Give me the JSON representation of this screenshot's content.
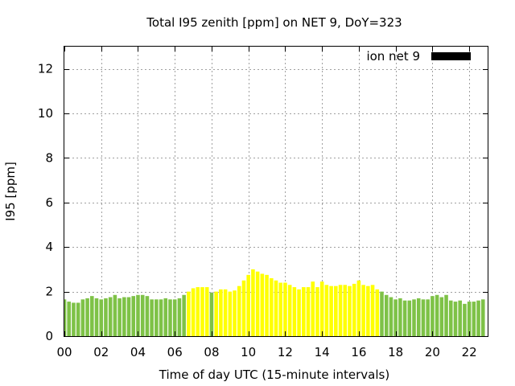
{
  "chart_data": {
    "type": "bar",
    "title": "Total I95 zenith [ppm] on NET 9, DoY=323",
    "xlabel": "Time of day UTC (15-minute intervals)",
    "ylabel": "I95 [ppm]",
    "legend": {
      "label": "ion net 9",
      "position": "top-right",
      "swatch_color": "#000000"
    },
    "ylim": [
      0,
      13
    ],
    "xlim": [
      0,
      23
    ],
    "x_tick_labels": [
      "00",
      "02",
      "04",
      "06",
      "08",
      "10",
      "12",
      "14",
      "16",
      "18",
      "20",
      "22"
    ],
    "x_tick_values": [
      0,
      2,
      4,
      6,
      8,
      10,
      12,
      14,
      16,
      18,
      20,
      22
    ],
    "y_tick_labels": [
      "0",
      "2",
      "4",
      "6",
      "8",
      "10",
      "12"
    ],
    "y_tick_values": [
      0,
      2,
      4,
      6,
      8,
      10,
      12
    ],
    "grid": true,
    "bar_width_hours": 0.2,
    "colors": {
      "green": "#7ec247",
      "yellow": "#ffff00"
    },
    "bars": [
      {
        "x": 0.0,
        "y": 1.65,
        "c": "green"
      },
      {
        "x": 0.25,
        "y": 1.55,
        "c": "green"
      },
      {
        "x": 0.5,
        "y": 1.5,
        "c": "green"
      },
      {
        "x": 0.75,
        "y": 1.5,
        "c": "green"
      },
      {
        "x": 1.0,
        "y": 1.65,
        "c": "green"
      },
      {
        "x": 1.25,
        "y": 1.7,
        "c": "green"
      },
      {
        "x": 1.5,
        "y": 1.8,
        "c": "green"
      },
      {
        "x": 1.75,
        "y": 1.7,
        "c": "green"
      },
      {
        "x": 2.0,
        "y": 1.65,
        "c": "green"
      },
      {
        "x": 2.25,
        "y": 1.7,
        "c": "green"
      },
      {
        "x": 2.5,
        "y": 1.75,
        "c": "green"
      },
      {
        "x": 2.75,
        "y": 1.85,
        "c": "green"
      },
      {
        "x": 3.0,
        "y": 1.7,
        "c": "green"
      },
      {
        "x": 3.25,
        "y": 1.75,
        "c": "green"
      },
      {
        "x": 3.5,
        "y": 1.75,
        "c": "green"
      },
      {
        "x": 3.75,
        "y": 1.8,
        "c": "green"
      },
      {
        "x": 4.0,
        "y": 1.85,
        "c": "green"
      },
      {
        "x": 4.25,
        "y": 1.85,
        "c": "green"
      },
      {
        "x": 4.5,
        "y": 1.8,
        "c": "green"
      },
      {
        "x": 4.75,
        "y": 1.65,
        "c": "green"
      },
      {
        "x": 5.0,
        "y": 1.65,
        "c": "green"
      },
      {
        "x": 5.25,
        "y": 1.65,
        "c": "green"
      },
      {
        "x": 5.5,
        "y": 1.7,
        "c": "green"
      },
      {
        "x": 5.75,
        "y": 1.65,
        "c": "green"
      },
      {
        "x": 6.0,
        "y": 1.65,
        "c": "green"
      },
      {
        "x": 6.25,
        "y": 1.7,
        "c": "green"
      },
      {
        "x": 6.5,
        "y": 1.85,
        "c": "green"
      },
      {
        "x": 6.75,
        "y": 2.0,
        "c": "yellow"
      },
      {
        "x": 7.0,
        "y": 2.15,
        "c": "yellow"
      },
      {
        "x": 7.25,
        "y": 2.2,
        "c": "yellow"
      },
      {
        "x": 7.5,
        "y": 2.2,
        "c": "yellow"
      },
      {
        "x": 7.75,
        "y": 2.2,
        "c": "yellow"
      },
      {
        "x": 8.0,
        "y": 1.95,
        "c": "green"
      },
      {
        "x": 8.25,
        "y": 2.0,
        "c": "yellow"
      },
      {
        "x": 8.5,
        "y": 2.1,
        "c": "yellow"
      },
      {
        "x": 8.75,
        "y": 2.1,
        "c": "yellow"
      },
      {
        "x": 9.0,
        "y": 2.0,
        "c": "yellow"
      },
      {
        "x": 9.25,
        "y": 2.05,
        "c": "yellow"
      },
      {
        "x": 9.5,
        "y": 2.25,
        "c": "yellow"
      },
      {
        "x": 9.75,
        "y": 2.5,
        "c": "yellow"
      },
      {
        "x": 10.0,
        "y": 2.75,
        "c": "yellow"
      },
      {
        "x": 10.25,
        "y": 3.0,
        "c": "yellow"
      },
      {
        "x": 10.5,
        "y": 2.9,
        "c": "yellow"
      },
      {
        "x": 10.75,
        "y": 2.8,
        "c": "yellow"
      },
      {
        "x": 11.0,
        "y": 2.75,
        "c": "yellow"
      },
      {
        "x": 11.25,
        "y": 2.6,
        "c": "yellow"
      },
      {
        "x": 11.5,
        "y": 2.5,
        "c": "yellow"
      },
      {
        "x": 11.75,
        "y": 2.4,
        "c": "yellow"
      },
      {
        "x": 12.0,
        "y": 2.4,
        "c": "yellow"
      },
      {
        "x": 12.25,
        "y": 2.3,
        "c": "yellow"
      },
      {
        "x": 12.5,
        "y": 2.2,
        "c": "yellow"
      },
      {
        "x": 12.75,
        "y": 2.1,
        "c": "yellow"
      },
      {
        "x": 13.0,
        "y": 2.2,
        "c": "yellow"
      },
      {
        "x": 13.25,
        "y": 2.2,
        "c": "yellow"
      },
      {
        "x": 13.5,
        "y": 2.45,
        "c": "yellow"
      },
      {
        "x": 13.75,
        "y": 2.2,
        "c": "yellow"
      },
      {
        "x": 14.0,
        "y": 2.45,
        "c": "yellow"
      },
      {
        "x": 14.25,
        "y": 2.3,
        "c": "yellow"
      },
      {
        "x": 14.5,
        "y": 2.25,
        "c": "yellow"
      },
      {
        "x": 14.75,
        "y": 2.25,
        "c": "yellow"
      },
      {
        "x": 15.0,
        "y": 2.3,
        "c": "yellow"
      },
      {
        "x": 15.25,
        "y": 2.3,
        "c": "yellow"
      },
      {
        "x": 15.5,
        "y": 2.25,
        "c": "yellow"
      },
      {
        "x": 15.75,
        "y": 2.35,
        "c": "yellow"
      },
      {
        "x": 16.0,
        "y": 2.5,
        "c": "yellow"
      },
      {
        "x": 16.25,
        "y": 2.3,
        "c": "yellow"
      },
      {
        "x": 16.5,
        "y": 2.25,
        "c": "yellow"
      },
      {
        "x": 16.75,
        "y": 2.3,
        "c": "yellow"
      },
      {
        "x": 17.0,
        "y": 2.1,
        "c": "yellow"
      },
      {
        "x": 17.25,
        "y": 2.0,
        "c": "green"
      },
      {
        "x": 17.5,
        "y": 1.85,
        "c": "green"
      },
      {
        "x": 17.75,
        "y": 1.75,
        "c": "green"
      },
      {
        "x": 18.0,
        "y": 1.65,
        "c": "green"
      },
      {
        "x": 18.25,
        "y": 1.7,
        "c": "green"
      },
      {
        "x": 18.5,
        "y": 1.6,
        "c": "green"
      },
      {
        "x": 18.75,
        "y": 1.6,
        "c": "green"
      },
      {
        "x": 19.0,
        "y": 1.65,
        "c": "green"
      },
      {
        "x": 19.25,
        "y": 1.7,
        "c": "green"
      },
      {
        "x": 19.5,
        "y": 1.65,
        "c": "green"
      },
      {
        "x": 19.75,
        "y": 1.65,
        "c": "green"
      },
      {
        "x": 20.0,
        "y": 1.8,
        "c": "green"
      },
      {
        "x": 20.25,
        "y": 1.85,
        "c": "green"
      },
      {
        "x": 20.5,
        "y": 1.75,
        "c": "green"
      },
      {
        "x": 20.75,
        "y": 1.85,
        "c": "green"
      },
      {
        "x": 21.0,
        "y": 1.6,
        "c": "green"
      },
      {
        "x": 21.25,
        "y": 1.55,
        "c": "green"
      },
      {
        "x": 21.5,
        "y": 1.6,
        "c": "green"
      },
      {
        "x": 21.75,
        "y": 1.45,
        "c": "green"
      },
      {
        "x": 22.0,
        "y": 1.55,
        "c": "green"
      },
      {
        "x": 22.25,
        "y": 1.55,
        "c": "green"
      },
      {
        "x": 22.5,
        "y": 1.6,
        "c": "green"
      },
      {
        "x": 22.75,
        "y": 1.65,
        "c": "green"
      }
    ]
  }
}
